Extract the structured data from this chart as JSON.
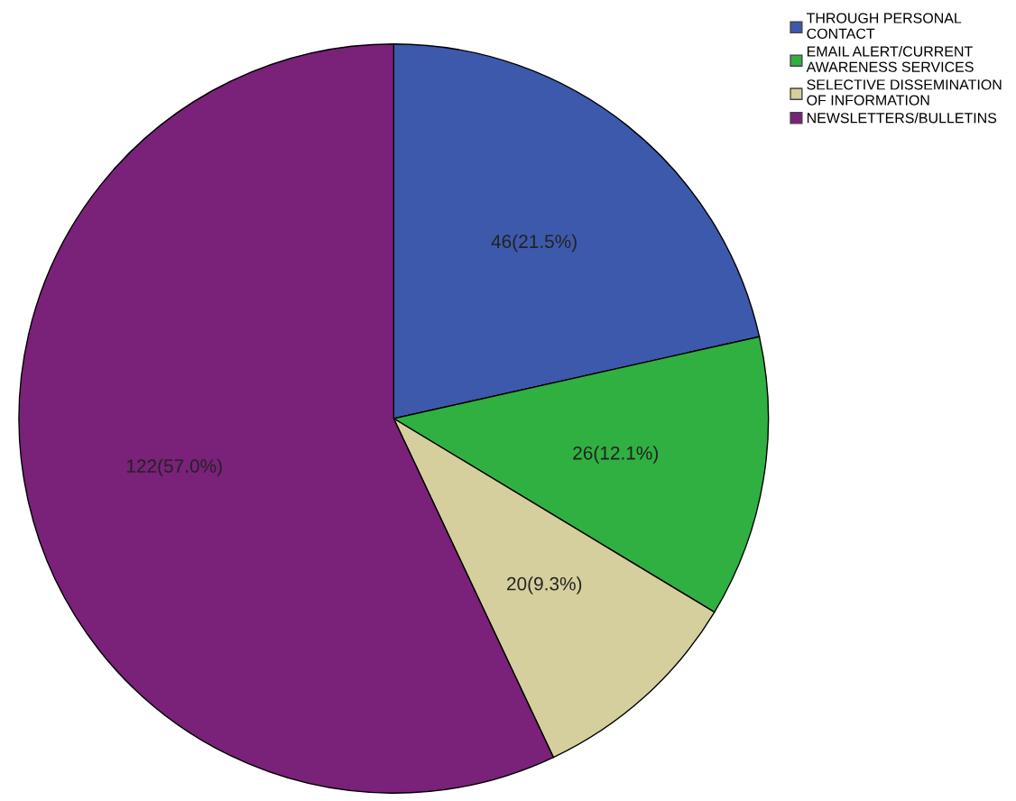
{
  "chart_data": {
    "type": "pie",
    "categories": [
      "THROUGH PERSONAL\nCONTACT",
      "EMAIL ALERT/CURRENT\nAWARENESS SERVICES",
      "SELECTIVE DISSEMINATION\nOF INFORMATION",
      "NEWSLETTERS/BULLETINS"
    ],
    "values": [
      46,
      26,
      20,
      122
    ],
    "colors": [
      "#3d59ab",
      "#2fb041",
      "#d5cf9d",
      "#7a2179"
    ],
    "value_labels": [
      "46(21.5%)",
      "26(12.1%)",
      "20(9.3%)",
      "122(57.0%)"
    ],
    "legend": "top right"
  }
}
